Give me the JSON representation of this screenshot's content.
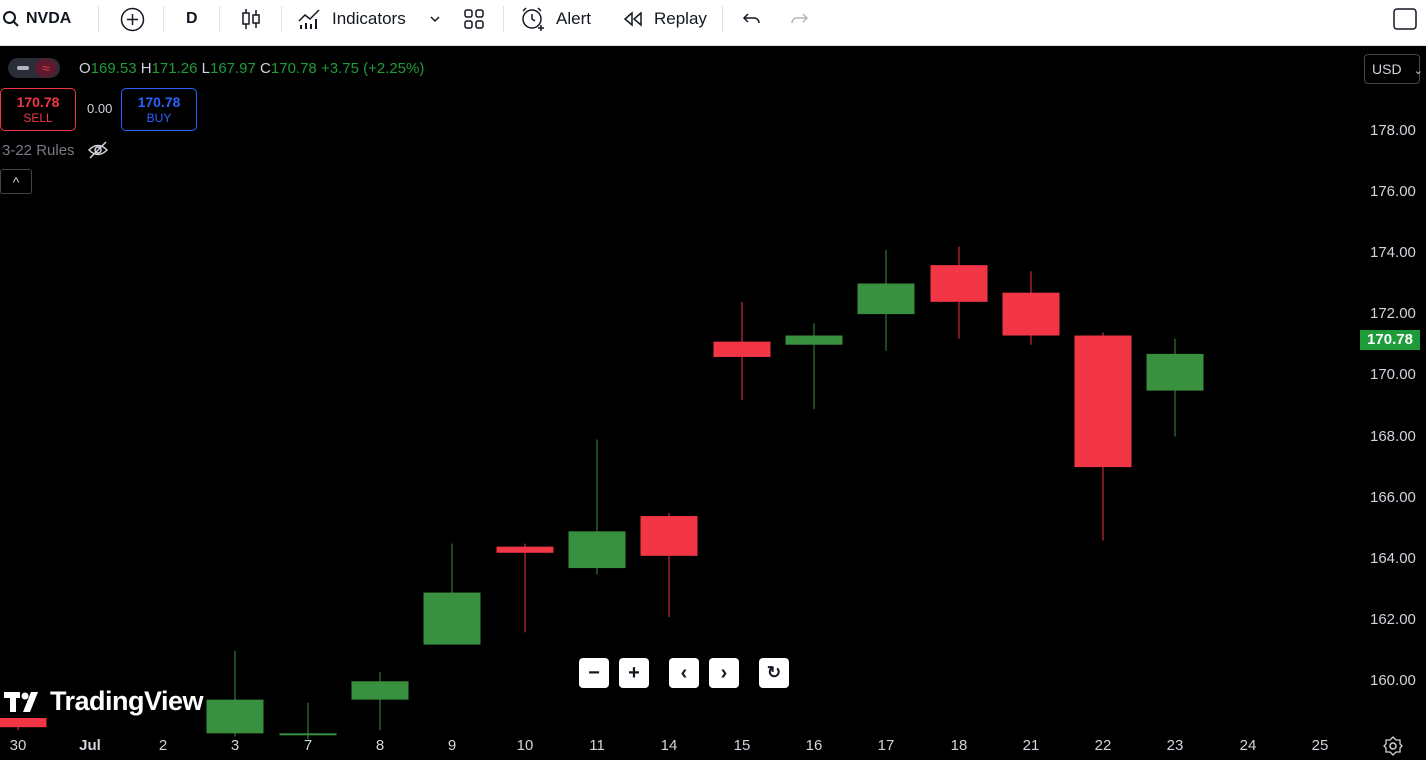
{
  "toolbar": {
    "symbol": "NVDA",
    "interval": "D",
    "indicators_label": "Indicators",
    "alert_label": "Alert",
    "replay_label": "Replay"
  },
  "legend": {
    "o_key": "O",
    "o_val": "169.53",
    "h_key": "H",
    "h_val": "171.26",
    "l_key": "L",
    "l_val": "167.97",
    "c_key": "C",
    "c_val": "170.78",
    "change": "+3.75 (+2.25%)"
  },
  "trade": {
    "sell_price": "170.78",
    "sell_label": "SELL",
    "spread": "0.00",
    "buy_price": "170.78",
    "buy_label": "BUY"
  },
  "indicator_name": "3-22 Rules",
  "currency": "USD",
  "current_price": "170.78",
  "y_axis": [
    "178.00",
    "176.00",
    "174.00",
    "172.00",
    "170.00",
    "168.00",
    "166.00",
    "164.00",
    "162.00",
    "160.00"
  ],
  "x_axis": [
    "30",
    "Jul",
    "2",
    "3",
    "7",
    "8",
    "9",
    "10",
    "11",
    "14",
    "15",
    "16",
    "17",
    "18",
    "21",
    "22",
    "23",
    "24",
    "25"
  ],
  "brand": "TradingView",
  "colors": {
    "up": "#399140",
    "down": "#f23645",
    "background": "#000000"
  },
  "chart_data": {
    "type": "candlestick",
    "ylim": [
      158.4,
      180.4
    ],
    "candles": [
      {
        "date": "30",
        "open": 158.8,
        "high": 158.8,
        "low": 158.4,
        "close": 158.5
      },
      {
        "date": "3",
        "open": 158.3,
        "high": 161.0,
        "low": 158.2,
        "close": 159.4
      },
      {
        "date": "7",
        "open": 158.3,
        "high": 159.3,
        "low": 158.1,
        "close": 158.3
      },
      {
        "date": "8",
        "open": 159.4,
        "high": 160.3,
        "low": 158.4,
        "close": 160.0
      },
      {
        "date": "9",
        "open": 161.2,
        "high": 164.5,
        "low": 161.2,
        "close": 162.9
      },
      {
        "date": "10",
        "open": 164.4,
        "high": 164.5,
        "low": 161.6,
        "close": 164.2
      },
      {
        "date": "11",
        "open": 163.7,
        "high": 167.9,
        "low": 163.5,
        "close": 164.9
      },
      {
        "date": "14",
        "open": 165.4,
        "high": 165.5,
        "low": 162.1,
        "close": 164.1
      },
      {
        "date": "15",
        "open": 171.1,
        "high": 172.4,
        "low": 169.2,
        "close": 170.6
      },
      {
        "date": "16",
        "open": 171.0,
        "high": 171.7,
        "low": 168.9,
        "close": 171.3
      },
      {
        "date": "17",
        "open": 172.0,
        "high": 174.1,
        "low": 170.8,
        "close": 173.0
      },
      {
        "date": "18",
        "open": 173.6,
        "high": 174.2,
        "low": 171.2,
        "close": 172.4
      },
      {
        "date": "21",
        "open": 172.7,
        "high": 173.4,
        "low": 171.0,
        "close": 171.3
      },
      {
        "date": "22",
        "open": 171.3,
        "high": 171.4,
        "low": 164.6,
        "close": 167.0
      },
      {
        "date": "23",
        "open": 169.5,
        "high": 171.2,
        "low": 168.0,
        "close": 170.7
      }
    ]
  }
}
